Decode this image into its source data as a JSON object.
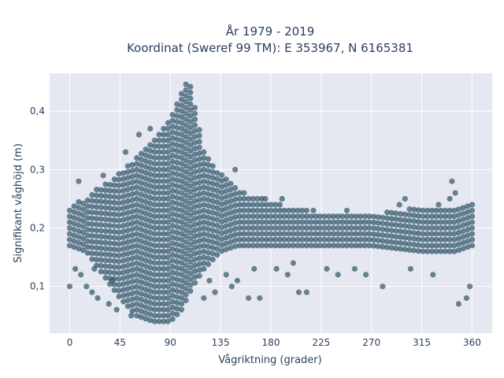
{
  "chart_data": {
    "type": "scatter",
    "title_line1": "År 1979 - 2019",
    "title_line2": "Koordinat (Sweref 99 TM): E 353967, N 6165381",
    "xlabel": "Vågriktning (grader)",
    "ylabel": "Signifikant våghöjd (m)",
    "xlim": [
      -18,
      378
    ],
    "ylim": [
      0.02,
      0.465
    ],
    "xticks": [
      0,
      45,
      90,
      135,
      180,
      225,
      270,
      315,
      360
    ],
    "xtick_labels": [
      "0",
      "45",
      "90",
      "135",
      "180",
      "225",
      "270",
      "315",
      "360"
    ],
    "yticks": [
      0.1,
      0.2,
      0.3,
      0.4
    ],
    "ytick_labels": [
      "0,1",
      "0,2",
      "0,3",
      "0,4"
    ],
    "grid": true,
    "marker_color": "#2f5468",
    "plot_bg": "#e5e8f0",
    "y_step": 0.01,
    "x_step": 4,
    "envelope_x": [
      0,
      15,
      30,
      45,
      60,
      75,
      90,
      100,
      105,
      110,
      120,
      135,
      150,
      165,
      180,
      200,
      225,
      270,
      315,
      345,
      360
    ],
    "envelope_low": [
      0.17,
      0.16,
      0.12,
      0.08,
      0.05,
      0.04,
      0.04,
      0.06,
      0.08,
      0.1,
      0.13,
      0.16,
      0.17,
      0.17,
      0.17,
      0.17,
      0.17,
      0.17,
      0.16,
      0.16,
      0.17
    ],
    "envelope_high": [
      0.23,
      0.25,
      0.27,
      0.29,
      0.32,
      0.35,
      0.39,
      0.43,
      0.45,
      0.43,
      0.33,
      0.29,
      0.26,
      0.25,
      0.24,
      0.23,
      0.22,
      0.22,
      0.23,
      0.23,
      0.24
    ],
    "outliers": [
      {
        "x": 0,
        "y": 0.1
      },
      {
        "x": 5,
        "y": 0.13
      },
      {
        "x": 8,
        "y": 0.28
      },
      {
        "x": 10,
        "y": 0.12
      },
      {
        "x": 15,
        "y": 0.1
      },
      {
        "x": 20,
        "y": 0.09
      },
      {
        "x": 22,
        "y": 0.13
      },
      {
        "x": 25,
        "y": 0.08
      },
      {
        "x": 30,
        "y": 0.29
      },
      {
        "x": 35,
        "y": 0.07
      },
      {
        "x": 38,
        "y": 0.11
      },
      {
        "x": 42,
        "y": 0.06
      },
      {
        "x": 50,
        "y": 0.33
      },
      {
        "x": 55,
        "y": 0.05
      },
      {
        "x": 62,
        "y": 0.36
      },
      {
        "x": 72,
        "y": 0.37
      },
      {
        "x": 120,
        "y": 0.08
      },
      {
        "x": 125,
        "y": 0.11
      },
      {
        "x": 130,
        "y": 0.09
      },
      {
        "x": 140,
        "y": 0.12
      },
      {
        "x": 145,
        "y": 0.1
      },
      {
        "x": 148,
        "y": 0.3
      },
      {
        "x": 150,
        "y": 0.11
      },
      {
        "x": 160,
        "y": 0.08
      },
      {
        "x": 165,
        "y": 0.13
      },
      {
        "x": 170,
        "y": 0.08
      },
      {
        "x": 175,
        "y": 0.25
      },
      {
        "x": 185,
        "y": 0.13
      },
      {
        "x": 190,
        "y": 0.25
      },
      {
        "x": 195,
        "y": 0.12
      },
      {
        "x": 200,
        "y": 0.14
      },
      {
        "x": 205,
        "y": 0.09
      },
      {
        "x": 212,
        "y": 0.09
      },
      {
        "x": 218,
        "y": 0.23
      },
      {
        "x": 230,
        "y": 0.13
      },
      {
        "x": 240,
        "y": 0.12
      },
      {
        "x": 248,
        "y": 0.23
      },
      {
        "x": 255,
        "y": 0.13
      },
      {
        "x": 265,
        "y": 0.12
      },
      {
        "x": 280,
        "y": 0.1
      },
      {
        "x": 295,
        "y": 0.24
      },
      {
        "x": 300,
        "y": 0.25
      },
      {
        "x": 305,
        "y": 0.13
      },
      {
        "x": 325,
        "y": 0.12
      },
      {
        "x": 330,
        "y": 0.24
      },
      {
        "x": 340,
        "y": 0.25
      },
      {
        "x": 342,
        "y": 0.28
      },
      {
        "x": 345,
        "y": 0.26
      },
      {
        "x": 348,
        "y": 0.07
      },
      {
        "x": 355,
        "y": 0.08
      },
      {
        "x": 358,
        "y": 0.1
      }
    ]
  }
}
